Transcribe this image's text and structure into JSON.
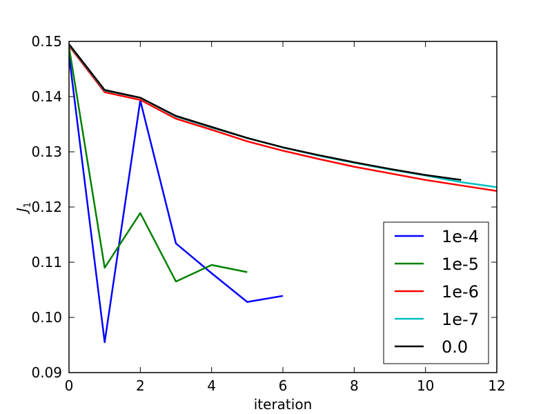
{
  "chart_data": {
    "type": "line",
    "xlabel": "iteration",
    "ylabel_main": "J",
    "ylabel_sub": "1",
    "xlim": [
      0,
      12
    ],
    "ylim": [
      0.09,
      0.15
    ],
    "xticks": [
      0,
      2,
      4,
      6,
      8,
      10,
      12
    ],
    "yticks": [
      0.09,
      0.1,
      0.11,
      0.12,
      0.13,
      0.14,
      0.15
    ],
    "xtick_labels": [
      "0",
      "2",
      "4",
      "6",
      "8",
      "10",
      "12"
    ],
    "ytick_labels": [
      "0.09",
      "0.10",
      "0.11",
      "0.12",
      "0.13",
      "0.14",
      "0.15"
    ],
    "grid": false,
    "legend_position": "lower-right",
    "series": [
      {
        "name": "1e-4",
        "color": "#0000ff",
        "x": [
          0,
          1,
          2,
          3,
          4,
          5,
          6
        ],
        "y": [
          0.1475,
          0.0955,
          0.1393,
          0.1134,
          0.108,
          0.1028,
          0.1039
        ]
      },
      {
        "name": "1e-5",
        "color": "#008000",
        "x": [
          0,
          1,
          2,
          3,
          4,
          5
        ],
        "y": [
          0.149,
          0.109,
          0.1189,
          0.1065,
          0.1095,
          0.1082
        ]
      },
      {
        "name": "1e-6",
        "color": "#ff0000",
        "x": [
          0,
          1,
          2,
          3,
          4,
          5,
          6,
          7,
          8,
          9,
          10,
          11,
          12
        ],
        "y": [
          0.1492,
          0.1408,
          0.1394,
          0.136,
          0.134,
          0.1319,
          0.1302,
          0.1287,
          0.1273,
          0.1261,
          0.1249,
          0.1239,
          0.1229
        ]
      },
      {
        "name": "1e-7",
        "color": "#00bfbf",
        "x": [
          0,
          1,
          2,
          3,
          4,
          5,
          6,
          7,
          8,
          9,
          10,
          11,
          12
        ],
        "y": [
          0.1494,
          0.1411,
          0.1398,
          0.1364,
          0.1344,
          0.1325,
          0.1308,
          0.1293,
          0.128,
          0.1268,
          0.1257,
          0.1245,
          0.1236
        ]
      },
      {
        "name": "0.0",
        "color": "#000000",
        "x": [
          0,
          1,
          2,
          3,
          4,
          5,
          6,
          7,
          8,
          9,
          10,
          11
        ],
        "y": [
          0.1495,
          0.1412,
          0.1398,
          0.1365,
          0.1345,
          0.1325,
          0.1308,
          0.1294,
          0.1281,
          0.1269,
          0.1258,
          0.1249
        ]
      }
    ]
  }
}
